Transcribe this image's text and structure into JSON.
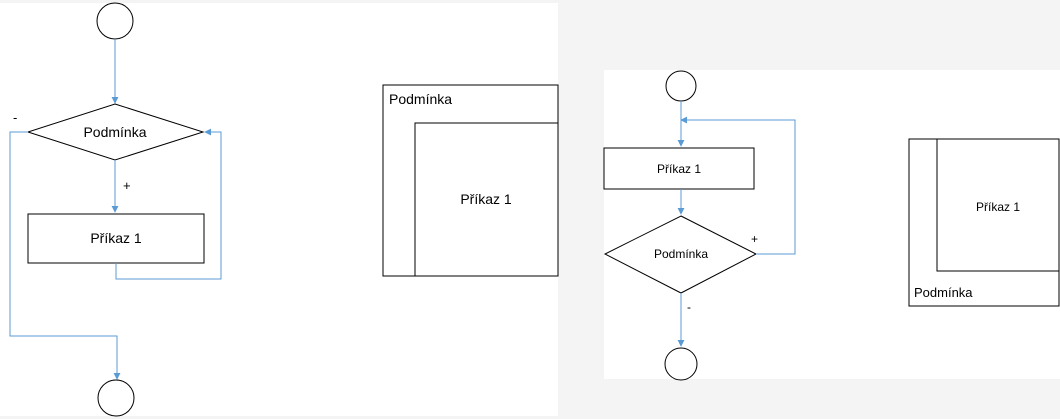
{
  "colors": {
    "connector": "#5b9bd5",
    "shape_stroke": "#000000",
    "panel_background": "#ffffff",
    "page_background": "#f4f4f4"
  },
  "while_flowchart": {
    "condition_label": "Podmínka",
    "statement_label": "Příkaz 1",
    "true_label": "+",
    "false_label": "-"
  },
  "while_structogram": {
    "condition_label": "Podmínka",
    "statement_label": "Příkaz 1"
  },
  "dowhile_flowchart": {
    "statement_label": "Příkaz 1",
    "condition_label": "Podmínka",
    "true_label": "+",
    "false_label": "-"
  },
  "dowhile_structogram": {
    "statement_label": "Příkaz 1",
    "condition_label": "Podmínka"
  }
}
